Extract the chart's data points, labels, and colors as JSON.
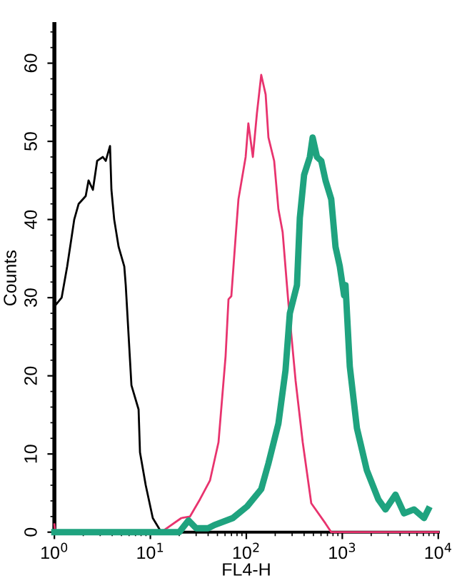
{
  "chart_data": {
    "type": "line",
    "xlabel": "FL4-H",
    "ylabel": "Counts",
    "log": "x",
    "xlim": [
      1,
      10000
    ],
    "ylim": [
      0,
      65
    ],
    "xticks": [
      {
        "value": 1,
        "label": "10$^{0}$"
      },
      {
        "value": 10,
        "label": "10$^{1}$"
      },
      {
        "value": 100,
        "label": "10$^{2}$"
      },
      {
        "value": 1000,
        "label": "10$^{3}$"
      },
      {
        "value": 10000,
        "label": "10$^{4}$"
      }
    ],
    "yticks": [
      0,
      10,
      20,
      30,
      40,
      50,
      60
    ],
    "grid": false,
    "legend": false,
    "marker": "none",
    "line_style": "solid",
    "series": [
      {
        "color": "#000000",
        "x": [
          1,
          1.02,
          1.19,
          1.36,
          1.51,
          1.61,
          1.79,
          2.12,
          2.27,
          2.52,
          2.79,
          3.2,
          3.43,
          3.8,
          3.93,
          4.2,
          4.67,
          5.35,
          5.54,
          6.35,
          7.54,
          7.8,
          8.95,
          10.6,
          13.0
        ],
        "values": [
          47,
          29,
          30,
          34,
          37.7,
          40,
          42,
          43,
          45,
          43.8,
          47.5,
          48,
          47.5,
          49.4,
          43.8,
          40,
          36.5,
          34,
          31.6,
          18.8,
          15.7,
          10.2,
          6,
          1.8,
          0
        ]
      },
      {
        "color": "#e8336e",
        "x": [
          1,
          1.02,
          13.0,
          21,
          25.9,
          32.9,
          41.8,
          51.3,
          60.8,
          65.2,
          69.8,
          77.3,
          82.8,
          98.4,
          105,
          117,
          129,
          143,
          159,
          170,
          195,
          216,
          239,
          265,
          275,
          326,
          387,
          475,
          669,
          767,
          10000
        ],
        "values": [
          1,
          0,
          0,
          1.8,
          2,
          4.2,
          6.6,
          11.5,
          22.5,
          29.8,
          30.2,
          37.7,
          42.6,
          48,
          52.3,
          48,
          53.6,
          58.5,
          56,
          50.5,
          47.5,
          41.3,
          38.4,
          31.6,
          29.2,
          19.4,
          11.5,
          3.7,
          1.1,
          0,
          0
        ]
      },
      {
        "color": "#1fa37f",
        "x": [
          1,
          20,
          25,
          30,
          40,
          46.3,
          72.3,
          102,
          143,
          170,
          216,
          256,
          284,
          337,
          361,
          400,
          459,
          491,
          545,
          604,
          669,
          767,
          850,
          942,
          1044,
          1080,
          1197,
          1420,
          1803,
          2372,
          2818,
          3581,
          4397,
          5589,
          7103,
          7870
        ],
        "values": [
          0,
          0,
          1.5,
          0.5,
          0.5,
          0.9,
          1.8,
          3.3,
          5.5,
          8.8,
          13.9,
          20.7,
          28,
          31.6,
          40.2,
          45.7,
          48,
          50.5,
          48,
          47.5,
          45,
          42.6,
          36.5,
          34,
          30.3,
          31.6,
          21.2,
          13.3,
          7.9,
          4.2,
          2.9,
          4.8,
          2.4,
          2.9,
          1.8,
          2.9
        ]
      }
    ]
  }
}
